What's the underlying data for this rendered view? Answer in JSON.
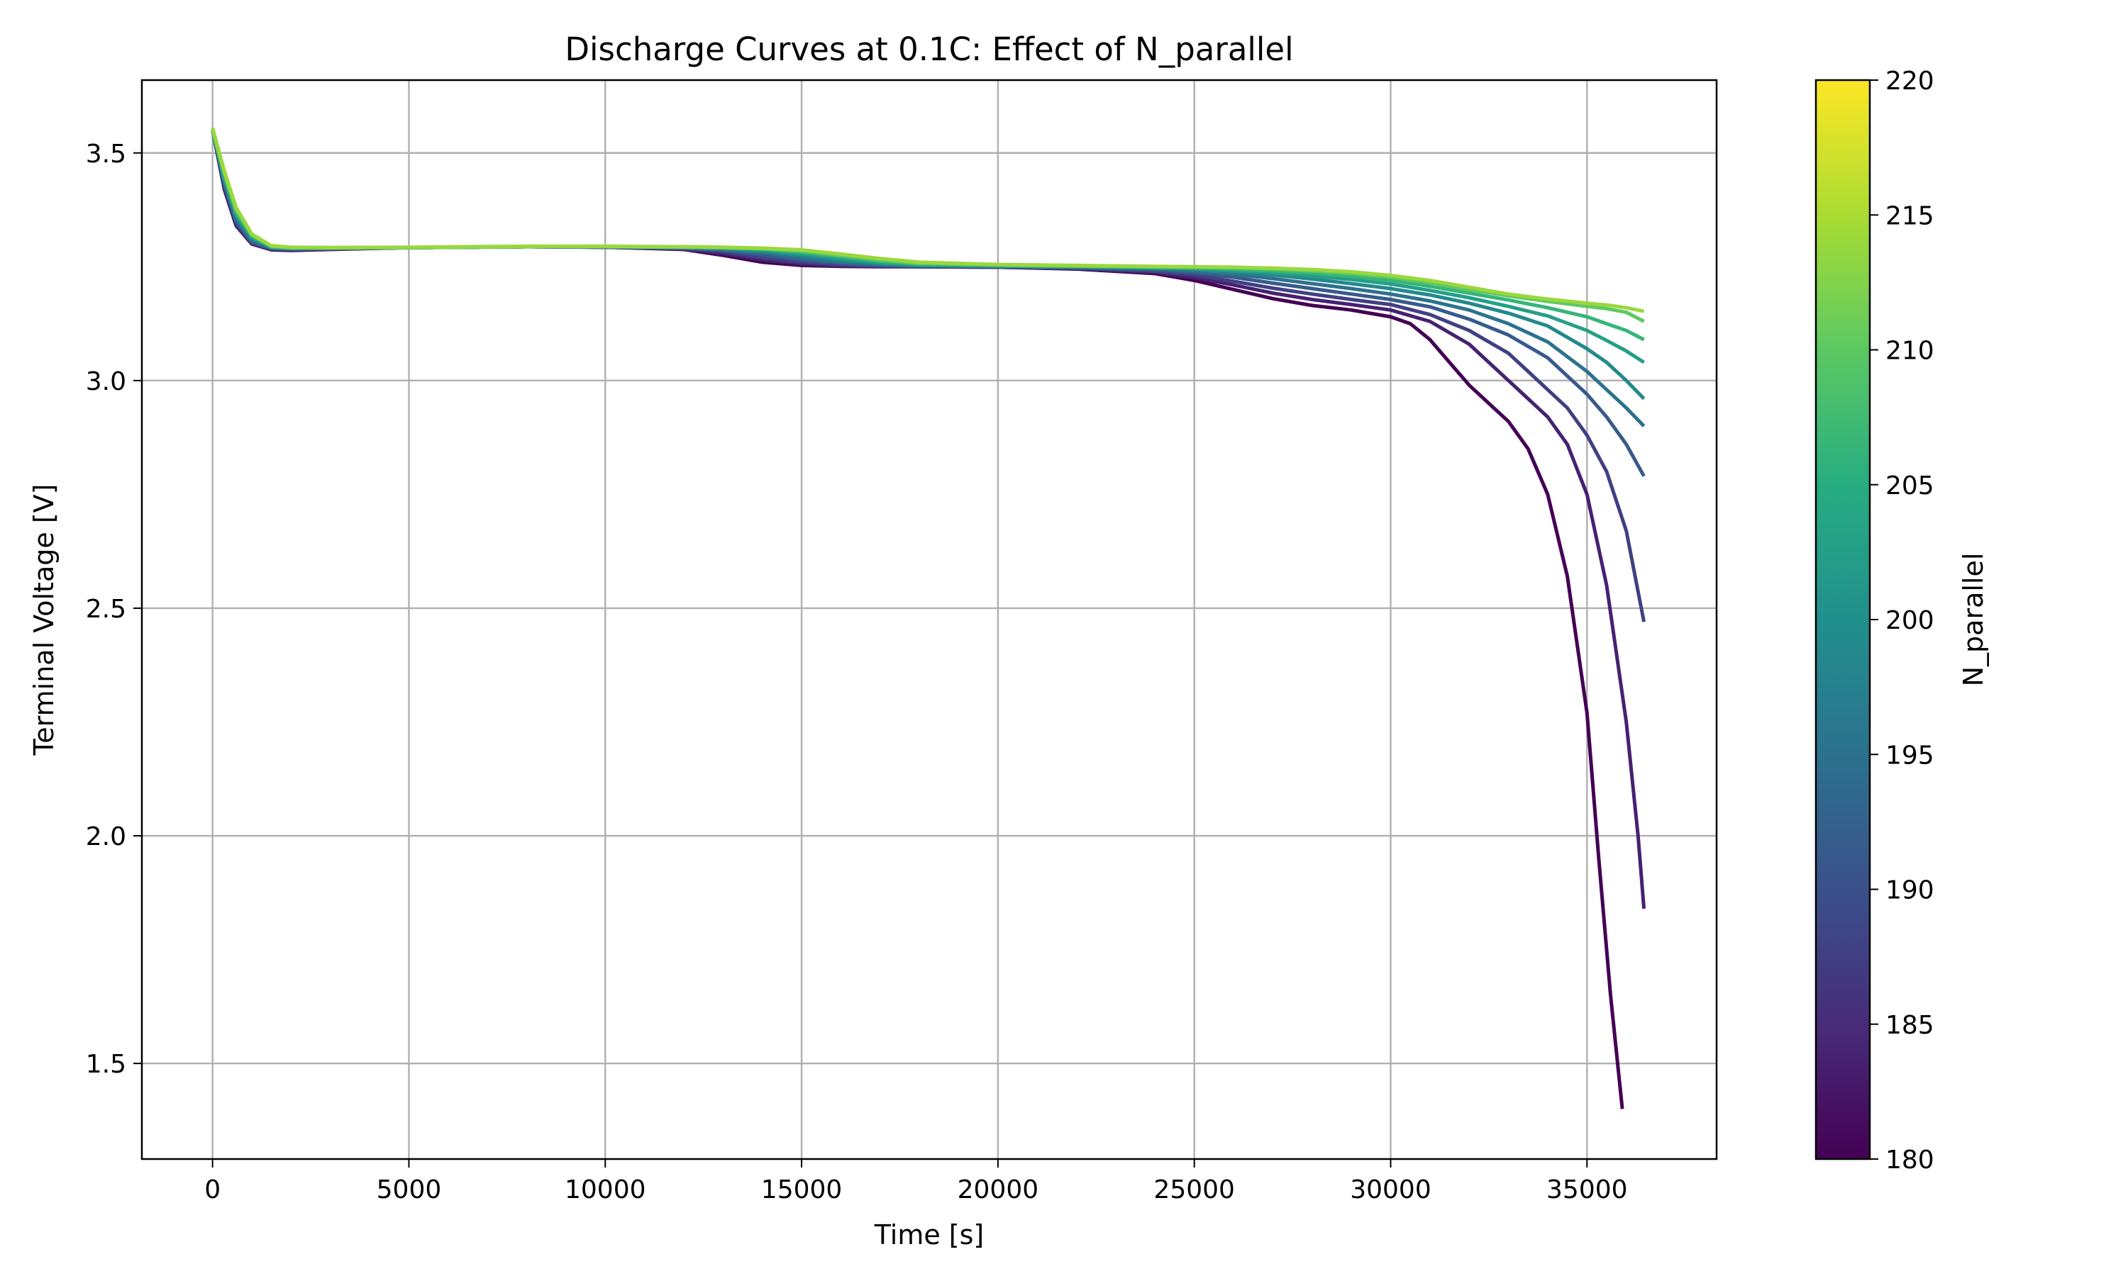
{
  "chart_data": {
    "type": "line",
    "title": "Discharge Curves at 0.1C: Effect of N_parallel",
    "xlabel": "Time [s]",
    "ylabel": "Terminal Voltage [V]",
    "xlim": [
      -1800,
      38300
    ],
    "ylim": [
      1.29,
      3.66
    ],
    "xticks": [
      0,
      5000,
      10000,
      15000,
      20000,
      25000,
      30000,
      35000
    ],
    "yticks": [
      1.5,
      2.0,
      2.5,
      3.0,
      3.5
    ],
    "xtick_labels": [
      "0",
      "5000",
      "10000",
      "15000",
      "20000",
      "25000",
      "30000",
      "35000"
    ],
    "ytick_labels": [
      "1.5",
      "2.0",
      "2.5",
      "3.0",
      "3.5"
    ],
    "grid": true,
    "colormap": "viridis",
    "colorbar": {
      "label": "N_parallel",
      "range": [
        180,
        220
      ],
      "ticks": [
        180,
        185,
        190,
        195,
        200,
        205,
        210,
        215,
        220
      ],
      "tick_labels": [
        "180",
        "185",
        "190",
        "195",
        "200",
        "205",
        "210",
        "215",
        "220"
      ]
    },
    "series": [
      {
        "n_parallel": 180,
        "x": [
          0,
          300,
          600,
          1000,
          1500,
          2000,
          3000,
          5000,
          8000,
          10000,
          12000,
          13000,
          14000,
          15000,
          16000,
          17000,
          18000,
          20000,
          22000,
          24000,
          25000,
          26000,
          27000,
          28000,
          29000,
          30000,
          30500,
          31000,
          31500,
          32000,
          32500,
          33000,
          33500,
          34000,
          34500,
          35000,
          35300,
          35600,
          35900
        ],
        "y": [
          3.55,
          3.42,
          3.34,
          3.3,
          3.287,
          3.286,
          3.288,
          3.292,
          3.294,
          3.293,
          3.288,
          3.275,
          3.26,
          3.253,
          3.251,
          3.25,
          3.25,
          3.249,
          3.245,
          3.235,
          3.22,
          3.2,
          3.18,
          3.165,
          3.155,
          3.14,
          3.125,
          3.09,
          3.04,
          2.99,
          2.95,
          2.91,
          2.85,
          2.75,
          2.57,
          2.27,
          1.95,
          1.65,
          1.4
        ]
      },
      {
        "n_parallel": 185,
        "x": [
          0,
          300,
          600,
          1000,
          1500,
          2000,
          3000,
          5000,
          8000,
          10000,
          12000,
          13000,
          14000,
          15000,
          16000,
          17000,
          18000,
          20000,
          22000,
          24000,
          25000,
          26000,
          27000,
          28000,
          29000,
          30000,
          31000,
          32000,
          32500,
          33000,
          33500,
          34000,
          34500,
          35000,
          35500,
          36000,
          36300,
          36450
        ],
        "y": [
          3.55,
          3.42,
          3.34,
          3.3,
          3.288,
          3.287,
          3.289,
          3.292,
          3.294,
          3.293,
          3.289,
          3.279,
          3.265,
          3.256,
          3.252,
          3.251,
          3.25,
          3.249,
          3.246,
          3.238,
          3.226,
          3.21,
          3.192,
          3.178,
          3.167,
          3.155,
          3.13,
          3.08,
          3.04,
          3.0,
          2.96,
          2.92,
          2.86,
          2.75,
          2.55,
          2.25,
          2.0,
          1.84
        ]
      },
      {
        "n_parallel": 190,
        "x": [
          0,
          300,
          600,
          1000,
          1500,
          2000,
          3000,
          5000,
          8000,
          10000,
          12000,
          13000,
          14000,
          15000,
          16000,
          17000,
          18000,
          20000,
          22000,
          24000,
          25000,
          26000,
          27000,
          28000,
          29000,
          30000,
          31000,
          32000,
          33000,
          33500,
          34000,
          34500,
          35000,
          35500,
          36000,
          36450
        ],
        "y": [
          3.55,
          3.43,
          3.345,
          3.302,
          3.289,
          3.288,
          3.289,
          3.292,
          3.294,
          3.293,
          3.29,
          3.283,
          3.27,
          3.26,
          3.254,
          3.252,
          3.251,
          3.25,
          3.247,
          3.24,
          3.232,
          3.218,
          3.203,
          3.19,
          3.178,
          3.167,
          3.145,
          3.11,
          3.06,
          3.02,
          2.98,
          2.94,
          2.88,
          2.8,
          2.67,
          2.47
        ]
      },
      {
        "n_parallel": 195,
        "x": [
          0,
          300,
          600,
          1000,
          1500,
          2000,
          3000,
          5000,
          8000,
          10000,
          12000,
          13000,
          14000,
          15000,
          16000,
          17000,
          18000,
          20000,
          22000,
          24000,
          25000,
          26000,
          27000,
          28000,
          29000,
          30000,
          31000,
          32000,
          33000,
          34000,
          34500,
          35000,
          35500,
          36000,
          36450
        ],
        "y": [
          3.55,
          3.43,
          3.35,
          3.305,
          3.29,
          3.289,
          3.29,
          3.292,
          3.294,
          3.293,
          3.291,
          3.286,
          3.276,
          3.265,
          3.257,
          3.253,
          3.252,
          3.25,
          3.248,
          3.243,
          3.237,
          3.227,
          3.214,
          3.202,
          3.19,
          3.178,
          3.162,
          3.135,
          3.1,
          3.05,
          3.01,
          2.97,
          2.92,
          2.86,
          2.79
        ]
      },
      {
        "n_parallel": 200,
        "x": [
          0,
          300,
          600,
          1000,
          1500,
          2000,
          3000,
          5000,
          8000,
          10000,
          12000,
          13000,
          14000,
          15000,
          16000,
          17000,
          18000,
          20000,
          22000,
          24000,
          25000,
          26000,
          27000,
          28000,
          29000,
          30000,
          31000,
          32000,
          33000,
          34000,
          35000,
          35500,
          36000,
          36450
        ],
        "y": [
          3.55,
          3.435,
          3.355,
          3.308,
          3.291,
          3.29,
          3.29,
          3.292,
          3.294,
          3.294,
          3.292,
          3.288,
          3.281,
          3.27,
          3.26,
          3.255,
          3.252,
          3.251,
          3.249,
          3.245,
          3.241,
          3.234,
          3.224,
          3.213,
          3.202,
          3.19,
          3.175,
          3.155,
          3.125,
          3.085,
          3.02,
          2.98,
          2.94,
          2.9
        ]
      },
      {
        "n_parallel": 205,
        "x": [
          0,
          300,
          600,
          1000,
          1500,
          2000,
          3000,
          5000,
          8000,
          10000,
          12000,
          13000,
          14000,
          15000,
          16000,
          17000,
          18000,
          20000,
          22000,
          24000,
          25000,
          26000,
          27000,
          28000,
          29000,
          30000,
          31000,
          32000,
          33000,
          34000,
          35000,
          35500,
          36000,
          36450
        ],
        "y": [
          3.55,
          3.44,
          3.36,
          3.312,
          3.292,
          3.29,
          3.291,
          3.292,
          3.294,
          3.294,
          3.293,
          3.29,
          3.284,
          3.275,
          3.264,
          3.257,
          3.253,
          3.251,
          3.25,
          3.247,
          3.244,
          3.239,
          3.232,
          3.223,
          3.213,
          3.202,
          3.188,
          3.17,
          3.148,
          3.12,
          3.07,
          3.04,
          3.0,
          2.96
        ]
      },
      {
        "n_parallel": 210,
        "x": [
          0,
          300,
          600,
          1000,
          1500,
          2000,
          3000,
          5000,
          8000,
          10000,
          12000,
          13000,
          14000,
          15000,
          16000,
          17000,
          18000,
          20000,
          22000,
          24000,
          25000,
          26000,
          27000,
          28000,
          29000,
          30000,
          31000,
          32000,
          33000,
          34000,
          35000,
          35500,
          36000,
          36450
        ],
        "y": [
          3.55,
          3.445,
          3.365,
          3.315,
          3.293,
          3.291,
          3.291,
          3.292,
          3.294,
          3.294,
          3.293,
          3.291,
          3.287,
          3.279,
          3.268,
          3.259,
          3.254,
          3.252,
          3.25,
          3.248,
          3.246,
          3.242,
          3.237,
          3.23,
          3.222,
          3.212,
          3.198,
          3.182,
          3.163,
          3.142,
          3.11,
          3.088,
          3.065,
          3.04
        ]
      },
      {
        "n_parallel": 215,
        "x": [
          0,
          300,
          600,
          1000,
          1500,
          2000,
          3000,
          5000,
          8000,
          10000,
          12000,
          13000,
          14000,
          15000,
          16000,
          17000,
          18000,
          20000,
          22000,
          24000,
          25000,
          26000,
          27000,
          28000,
          29000,
          30000,
          31000,
          32000,
          33000,
          34000,
          35000,
          35500,
          36000,
          36450
        ],
        "y": [
          3.55,
          3.45,
          3.37,
          3.318,
          3.294,
          3.291,
          3.291,
          3.292,
          3.294,
          3.294,
          3.293,
          3.292,
          3.289,
          3.282,
          3.272,
          3.262,
          3.256,
          3.253,
          3.251,
          3.249,
          3.248,
          3.245,
          3.241,
          3.236,
          3.229,
          3.22,
          3.207,
          3.192,
          3.177,
          3.16,
          3.14,
          3.125,
          3.11,
          3.09
        ]
      },
      {
        "n_parallel": 220,
        "x": [
          0,
          300,
          600,
          1000,
          1500,
          2000,
          3000,
          5000,
          8000,
          10000,
          12000,
          13000,
          14000,
          15000,
          16000,
          17000,
          18000,
          20000,
          22000,
          24000,
          25000,
          26000,
          27000,
          28000,
          29000,
          30000,
          31000,
          32000,
          33000,
          34000,
          35000,
          35500,
          36000,
          36450
        ],
        "y": [
          3.55,
          3.455,
          3.375,
          3.32,
          3.295,
          3.292,
          3.292,
          3.292,
          3.294,
          3.294,
          3.293,
          3.292,
          3.29,
          3.285,
          3.275,
          3.265,
          3.258,
          3.254,
          3.252,
          3.25,
          3.249,
          3.248,
          3.245,
          3.241,
          3.235,
          3.227,
          3.215,
          3.2,
          3.186,
          3.174,
          3.163,
          3.158,
          3.15,
          3.13
        ]
      },
      {
        "n_parallel": 220,
        "x": [
          0,
          300,
          600,
          1000,
          1500,
          2000,
          3000,
          5000,
          8000,
          10000,
          12000,
          13000,
          14000,
          15000,
          16000,
          17000,
          18000,
          20000,
          22000,
          24000,
          25000,
          26000,
          27000,
          28000,
          29000,
          30000,
          31000,
          32000,
          33000,
          34000,
          35000,
          35500,
          36000,
          36450
        ],
        "y": [
          3.555,
          3.46,
          3.38,
          3.322,
          3.296,
          3.293,
          3.292,
          3.293,
          3.295,
          3.295,
          3.294,
          3.293,
          3.291,
          3.287,
          3.278,
          3.268,
          3.26,
          3.255,
          3.253,
          3.251,
          3.25,
          3.249,
          3.247,
          3.244,
          3.239,
          3.231,
          3.22,
          3.205,
          3.19,
          3.179,
          3.17,
          3.166,
          3.16,
          3.152
        ]
      }
    ]
  }
}
